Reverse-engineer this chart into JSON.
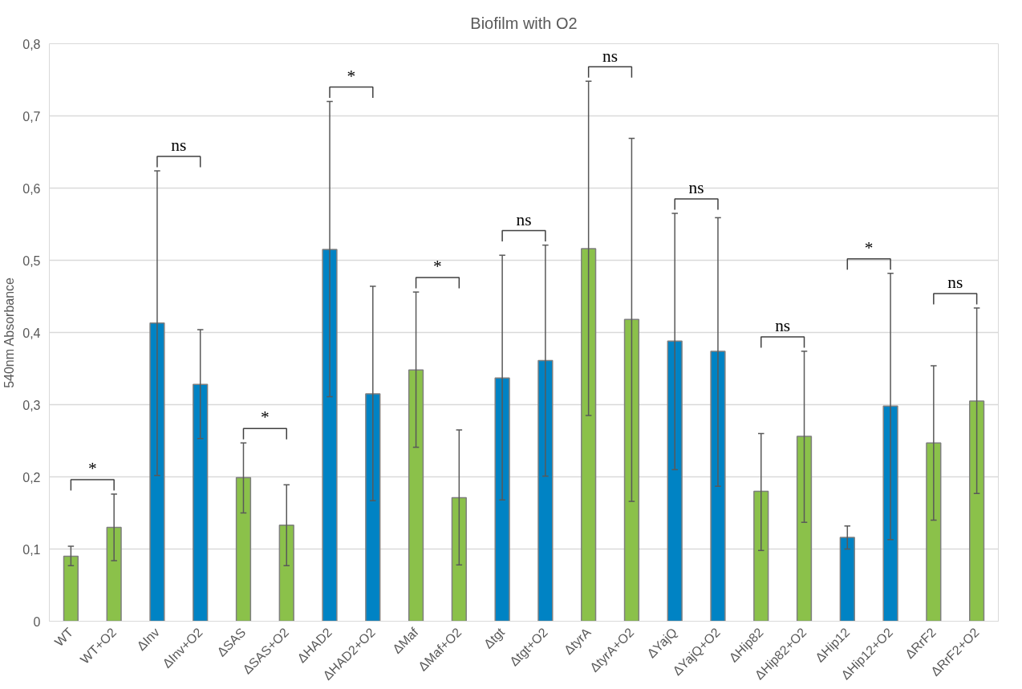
{
  "chart_data": {
    "type": "bar",
    "title": "Biofilm with O2",
    "ylabel": "540nm Absorbance",
    "categories": [
      "WT",
      "WT+O2",
      "ΔInv",
      "ΔInv+O2",
      "ΔSAS",
      "ΔSAS+O2",
      "ΔHAD2",
      "ΔHAD2+O2",
      "ΔMaf",
      "ΔMaf+O2",
      "Δtgt",
      "Δtgt+O2",
      "ΔtyrA",
      "ΔtyrA+O2",
      "ΔYajQ",
      "ΔYajQ+O2",
      "ΔHip82",
      "ΔHip82+O2",
      "ΔHip12",
      "ΔHip12+O2",
      "ΔRrF2",
      "ΔRrF2+O2"
    ],
    "values": [
      0.09,
      0.13,
      0.413,
      0.328,
      0.199,
      0.133,
      0.515,
      0.315,
      0.348,
      0.171,
      0.337,
      0.361,
      0.516,
      0.418,
      0.388,
      0.374,
      0.18,
      0.256,
      0.116,
      0.298,
      0.247,
      0.305
    ],
    "errors": [
      [
        0.077,
        0.104
      ],
      [
        0.084,
        0.176
      ],
      [
        0.202,
        0.624
      ],
      [
        0.253,
        0.404
      ],
      [
        0.15,
        0.247
      ],
      [
        0.077,
        0.189
      ],
      [
        0.311,
        0.72
      ],
      [
        0.167,
        0.464
      ],
      [
        0.241,
        0.456
      ],
      [
        0.078,
        0.265
      ],
      [
        0.168,
        0.507
      ],
      [
        0.201,
        0.521
      ],
      [
        0.285,
        0.748
      ],
      [
        0.166,
        0.669
      ],
      [
        0.21,
        0.565
      ],
      [
        0.187,
        0.559
      ],
      [
        0.098,
        0.26
      ],
      [
        0.137,
        0.374
      ],
      [
        0.1,
        0.132
      ],
      [
        0.113,
        0.482
      ],
      [
        0.14,
        0.354
      ],
      [
        0.177,
        0.434
      ]
    ],
    "colors": [
      "#8bc14a",
      "#8bc14a",
      "#0083c4",
      "#0083c4",
      "#8bc14a",
      "#8bc14a",
      "#0083c4",
      "#0083c4",
      "#8bc14a",
      "#8bc14a",
      "#0083c4",
      "#0083c4",
      "#8bc14a",
      "#8bc14a",
      "#0083c4",
      "#0083c4",
      "#8bc14a",
      "#8bc14a",
      "#0083c4",
      "#0083c4",
      "#8bc14a",
      "#8bc14a"
    ],
    "ylim": [
      0,
      0.8
    ],
    "yticks": [
      0,
      {
        "value": 0.1,
        "label": "0,1"
      },
      {
        "value": 0.2,
        "label": "0,2"
      },
      {
        "value": 0.3,
        "label": "0,3"
      },
      {
        "value": 0.4,
        "label": "0,4"
      },
      {
        "value": 0.5,
        "label": "0,5"
      },
      {
        "value": 0.6,
        "label": "0,6"
      },
      {
        "value": 0.7,
        "label": "0,7"
      },
      {
        "value": 0.8,
        "label": "0,8"
      }
    ],
    "grid": "y",
    "annotations": [
      "*",
      "ns",
      "*",
      "*",
      "*",
      "ns",
      "ns",
      "ns",
      "ns",
      "*",
      "ns"
    ]
  }
}
